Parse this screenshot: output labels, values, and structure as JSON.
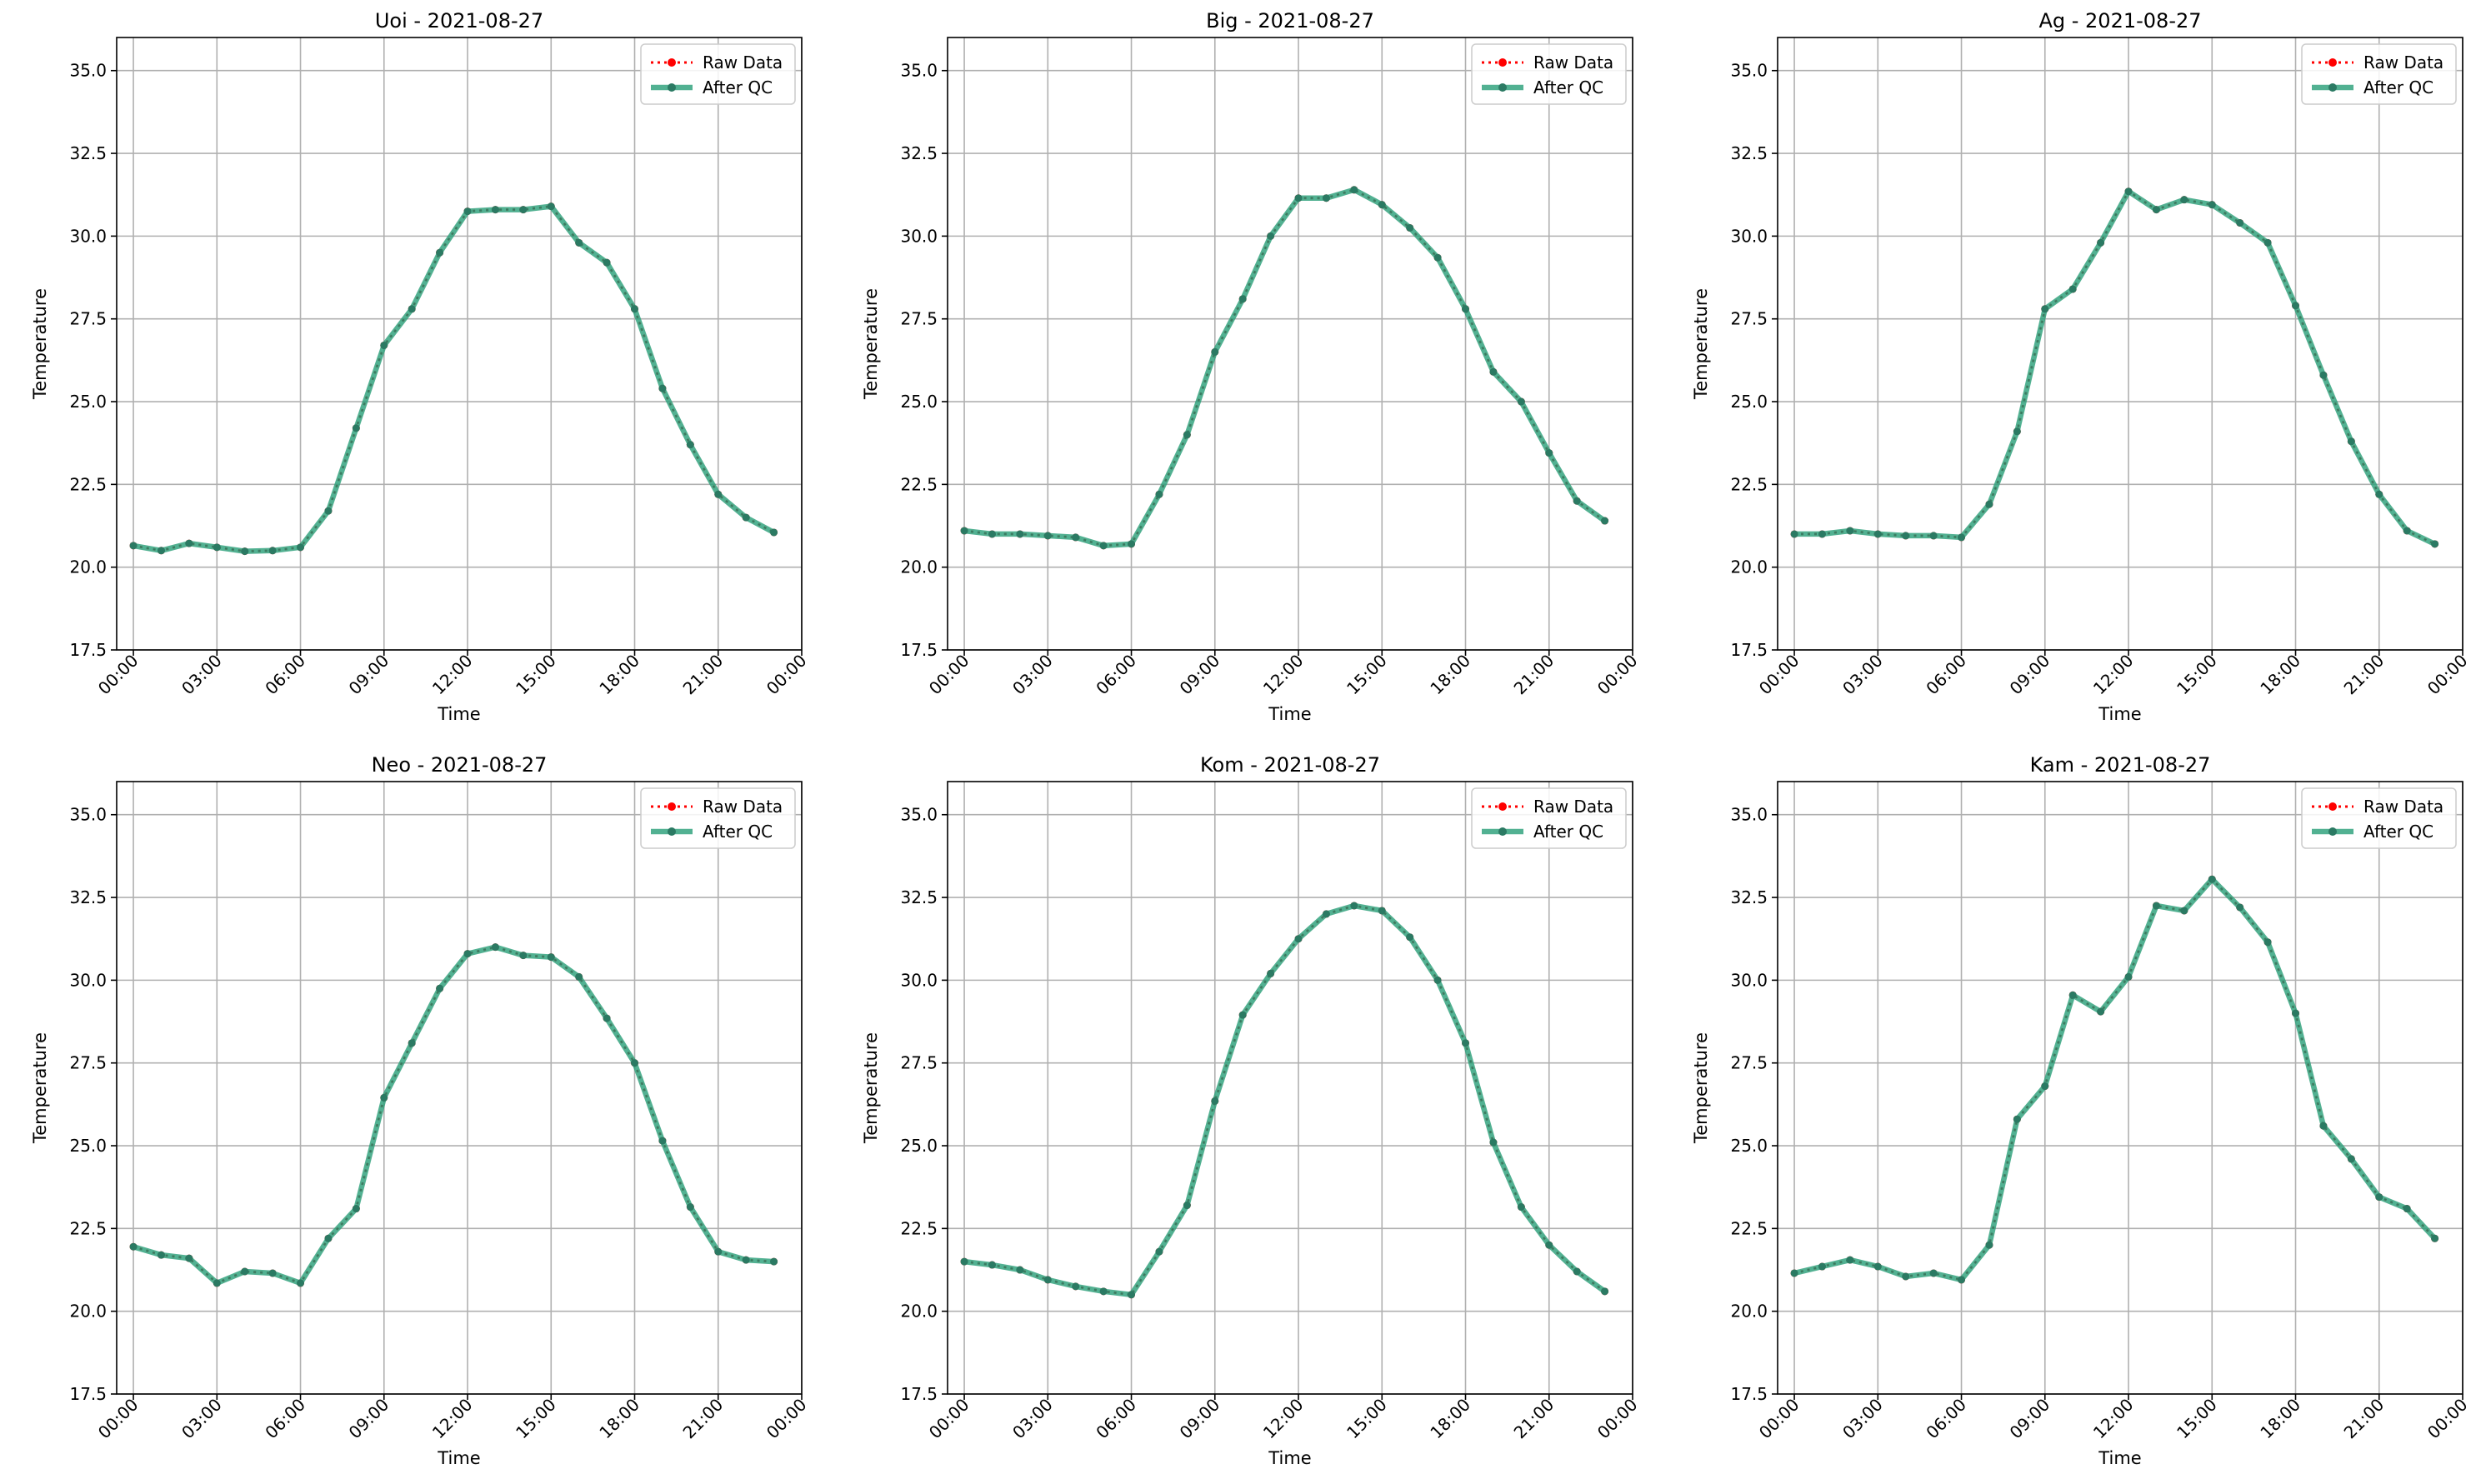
{
  "colors": {
    "raw": "#ff0000",
    "after_qc": "#2ca07a",
    "after_qc_marker": "#2b7a63",
    "grid": "#b0b0b0",
    "axes": "#000000",
    "legend_border": "#cccccc"
  },
  "legend": {
    "raw_label": "Raw Data",
    "qc_label": "After QC",
    "placement": "upper right"
  },
  "chart_data": [
    {
      "type": "line",
      "title": "Uoi - 2021-08-27",
      "xlabel": "Time",
      "ylabel": "Temperature",
      "x_ticks": [
        "00:00",
        "03:00",
        "06:00",
        "09:00",
        "12:00",
        "15:00",
        "18:00",
        "21:00",
        "00:00"
      ],
      "y_ticks": [
        "17.5",
        "20.0",
        "22.5",
        "25.0",
        "27.5",
        "30.0",
        "32.5",
        "35.0"
      ],
      "ylim": [
        17.5,
        36.0
      ],
      "xlim_hours": [
        -0.6,
        24.0
      ],
      "grid": true,
      "x_hours": [
        0,
        1,
        2,
        3,
        4,
        5,
        6,
        7,
        8,
        9,
        10,
        11,
        12,
        13,
        14,
        15,
        16,
        17,
        18,
        19,
        20,
        21,
        22,
        23
      ],
      "series": [
        {
          "name": "Raw Data",
          "values": [
            20.65,
            20.5,
            20.72,
            20.6,
            20.48,
            20.5,
            20.6,
            21.7,
            24.2,
            26.7,
            27.8,
            29.5,
            30.75,
            30.8,
            30.8,
            30.9,
            29.8,
            29.2,
            27.8,
            25.4,
            23.7,
            22.2,
            21.5,
            21.05
          ]
        },
        {
          "name": "After QC",
          "values": [
            20.65,
            20.5,
            20.72,
            20.6,
            20.48,
            20.5,
            20.6,
            21.7,
            24.2,
            26.7,
            27.8,
            29.5,
            30.75,
            30.8,
            30.8,
            30.9,
            29.8,
            29.2,
            27.8,
            25.4,
            23.7,
            22.2,
            21.5,
            21.05
          ]
        }
      ]
    },
    {
      "type": "line",
      "title": "Big - 2021-08-27",
      "xlabel": "Time",
      "ylabel": "Temperature",
      "x_ticks": [
        "00:00",
        "03:00",
        "06:00",
        "09:00",
        "12:00",
        "15:00",
        "18:00",
        "21:00",
        "00:00"
      ],
      "y_ticks": [
        "17.5",
        "20.0",
        "22.5",
        "25.0",
        "27.5",
        "30.0",
        "32.5",
        "35.0"
      ],
      "ylim": [
        17.5,
        36.0
      ],
      "xlim_hours": [
        -0.6,
        24.0
      ],
      "grid": true,
      "x_hours": [
        0,
        1,
        2,
        3,
        4,
        5,
        6,
        7,
        8,
        9,
        10,
        11,
        12,
        13,
        14,
        15,
        16,
        17,
        18,
        19,
        20,
        21,
        22,
        23
      ],
      "series": [
        {
          "name": "Raw Data",
          "values": [
            21.1,
            21.0,
            21.0,
            20.95,
            20.9,
            20.65,
            20.7,
            22.2,
            24.0,
            26.5,
            28.1,
            30.0,
            31.15,
            31.15,
            31.4,
            30.95,
            30.25,
            29.35,
            27.8,
            25.9,
            25.0,
            23.45,
            22.0,
            21.4
          ]
        },
        {
          "name": "After QC",
          "values": [
            21.1,
            21.0,
            21.0,
            20.95,
            20.9,
            20.65,
            20.7,
            22.2,
            24.0,
            26.5,
            28.1,
            30.0,
            31.15,
            31.15,
            31.4,
            30.95,
            30.25,
            29.35,
            27.8,
            25.9,
            25.0,
            23.45,
            22.0,
            21.4
          ]
        }
      ]
    },
    {
      "type": "line",
      "title": "Ag - 2021-08-27",
      "xlabel": "Time",
      "ylabel": "Temperature",
      "x_ticks": [
        "00:00",
        "03:00",
        "06:00",
        "09:00",
        "12:00",
        "15:00",
        "18:00",
        "21:00",
        "00:00"
      ],
      "y_ticks": [
        "17.5",
        "20.0",
        "22.5",
        "25.0",
        "27.5",
        "30.0",
        "32.5",
        "35.0"
      ],
      "ylim": [
        17.5,
        36.0
      ],
      "xlim_hours": [
        -0.6,
        24.0
      ],
      "grid": true,
      "x_hours": [
        0,
        1,
        2,
        3,
        4,
        5,
        6,
        7,
        8,
        9,
        10,
        11,
        12,
        13,
        14,
        15,
        16,
        17,
        18,
        19,
        20,
        21,
        22,
        23
      ],
      "series": [
        {
          "name": "Raw Data",
          "values": [
            21.0,
            21.0,
            21.1,
            21.0,
            20.95,
            20.95,
            20.9,
            21.9,
            24.1,
            27.8,
            28.4,
            29.8,
            31.35,
            30.8,
            31.1,
            30.95,
            30.4,
            29.8,
            27.9,
            25.8,
            23.8,
            22.2,
            21.1,
            20.7
          ]
        },
        {
          "name": "After QC",
          "values": [
            21.0,
            21.0,
            21.1,
            21.0,
            20.95,
            20.95,
            20.9,
            21.9,
            24.1,
            27.8,
            28.4,
            29.8,
            31.35,
            30.8,
            31.1,
            30.95,
            30.4,
            29.8,
            27.9,
            25.8,
            23.8,
            22.2,
            21.1,
            20.7
          ]
        }
      ]
    },
    {
      "type": "line",
      "title": "Neo - 2021-08-27",
      "xlabel": "Time",
      "ylabel": "Temperature",
      "x_ticks": [
        "00:00",
        "03:00",
        "06:00",
        "09:00",
        "12:00",
        "15:00",
        "18:00",
        "21:00",
        "00:00"
      ],
      "y_ticks": [
        "17.5",
        "20.0",
        "22.5",
        "25.0",
        "27.5",
        "30.0",
        "32.5",
        "35.0"
      ],
      "ylim": [
        17.5,
        36.0
      ],
      "xlim_hours": [
        -0.6,
        24.0
      ],
      "grid": true,
      "x_hours": [
        0,
        1,
        2,
        3,
        4,
        5,
        6,
        7,
        8,
        9,
        10,
        11,
        12,
        13,
        14,
        15,
        16,
        17,
        18,
        19,
        20,
        21,
        22,
        23
      ],
      "series": [
        {
          "name": "Raw Data",
          "values": [
            21.95,
            21.7,
            21.6,
            20.85,
            21.2,
            21.15,
            20.85,
            22.2,
            23.1,
            26.45,
            28.1,
            29.75,
            30.8,
            31.0,
            30.75,
            30.7,
            30.1,
            28.85,
            27.5,
            25.15,
            23.15,
            21.8,
            21.55,
            21.5
          ]
        },
        {
          "name": "After QC",
          "values": [
            21.95,
            21.7,
            21.6,
            20.85,
            21.2,
            21.15,
            20.85,
            22.2,
            23.1,
            26.45,
            28.1,
            29.75,
            30.8,
            31.0,
            30.75,
            30.7,
            30.1,
            28.85,
            27.5,
            25.15,
            23.15,
            21.8,
            21.55,
            21.5
          ]
        }
      ]
    },
    {
      "type": "line",
      "title": "Kom - 2021-08-27",
      "xlabel": "Time",
      "ylabel": "Temperature",
      "x_ticks": [
        "00:00",
        "03:00",
        "06:00",
        "09:00",
        "12:00",
        "15:00",
        "18:00",
        "21:00",
        "00:00"
      ],
      "y_ticks": [
        "17.5",
        "20.0",
        "22.5",
        "25.0",
        "27.5",
        "30.0",
        "32.5",
        "35.0"
      ],
      "ylim": [
        17.5,
        36.0
      ],
      "xlim_hours": [
        -0.6,
        24.0
      ],
      "grid": true,
      "x_hours": [
        0,
        1,
        2,
        3,
        4,
        5,
        6,
        7,
        8,
        9,
        10,
        11,
        12,
        13,
        14,
        15,
        16,
        17,
        18,
        19,
        20,
        21,
        22,
        23
      ],
      "series": [
        {
          "name": "Raw Data",
          "values": [
            21.5,
            21.4,
            21.25,
            20.95,
            20.75,
            20.6,
            20.5,
            21.8,
            23.2,
            26.35,
            28.95,
            30.2,
            31.25,
            32.0,
            32.25,
            32.1,
            31.3,
            30.0,
            28.1,
            25.1,
            23.15,
            22.0,
            21.2,
            20.6
          ]
        },
        {
          "name": "After QC",
          "values": [
            21.5,
            21.4,
            21.25,
            20.95,
            20.75,
            20.6,
            20.5,
            21.8,
            23.2,
            26.35,
            28.95,
            30.2,
            31.25,
            32.0,
            32.25,
            32.1,
            31.3,
            30.0,
            28.1,
            25.1,
            23.15,
            22.0,
            21.2,
            20.6
          ]
        }
      ]
    },
    {
      "type": "line",
      "title": "Kam - 2021-08-27",
      "xlabel": "Time",
      "ylabel": "Temperature",
      "x_ticks": [
        "00:00",
        "03:00",
        "06:00",
        "09:00",
        "12:00",
        "15:00",
        "18:00",
        "21:00",
        "00:00"
      ],
      "y_ticks": [
        "17.5",
        "20.0",
        "22.5",
        "25.0",
        "27.5",
        "30.0",
        "32.5",
        "35.0"
      ],
      "ylim": [
        17.5,
        36.0
      ],
      "xlim_hours": [
        -0.6,
        24.0
      ],
      "grid": true,
      "x_hours": [
        0,
        1,
        2,
        3,
        4,
        5,
        6,
        7,
        8,
        9,
        10,
        11,
        12,
        13,
        14,
        15,
        16,
        17,
        18,
        19,
        20,
        21,
        22,
        23
      ],
      "series": [
        {
          "name": "Raw Data",
          "values": [
            21.15,
            21.35,
            21.55,
            21.35,
            21.05,
            21.15,
            20.95,
            22.0,
            25.8,
            26.8,
            29.55,
            29.05,
            30.1,
            32.25,
            32.1,
            33.05,
            32.2,
            31.15,
            29.0,
            25.6,
            24.6,
            23.45,
            23.1,
            22.2
          ]
        },
        {
          "name": "After QC",
          "values": [
            21.15,
            21.35,
            21.55,
            21.35,
            21.05,
            21.15,
            20.95,
            22.0,
            25.8,
            26.8,
            29.55,
            29.05,
            30.1,
            32.25,
            32.1,
            33.05,
            32.2,
            31.15,
            29.0,
            25.6,
            24.6,
            23.45,
            23.1,
            22.2
          ]
        }
      ]
    }
  ]
}
